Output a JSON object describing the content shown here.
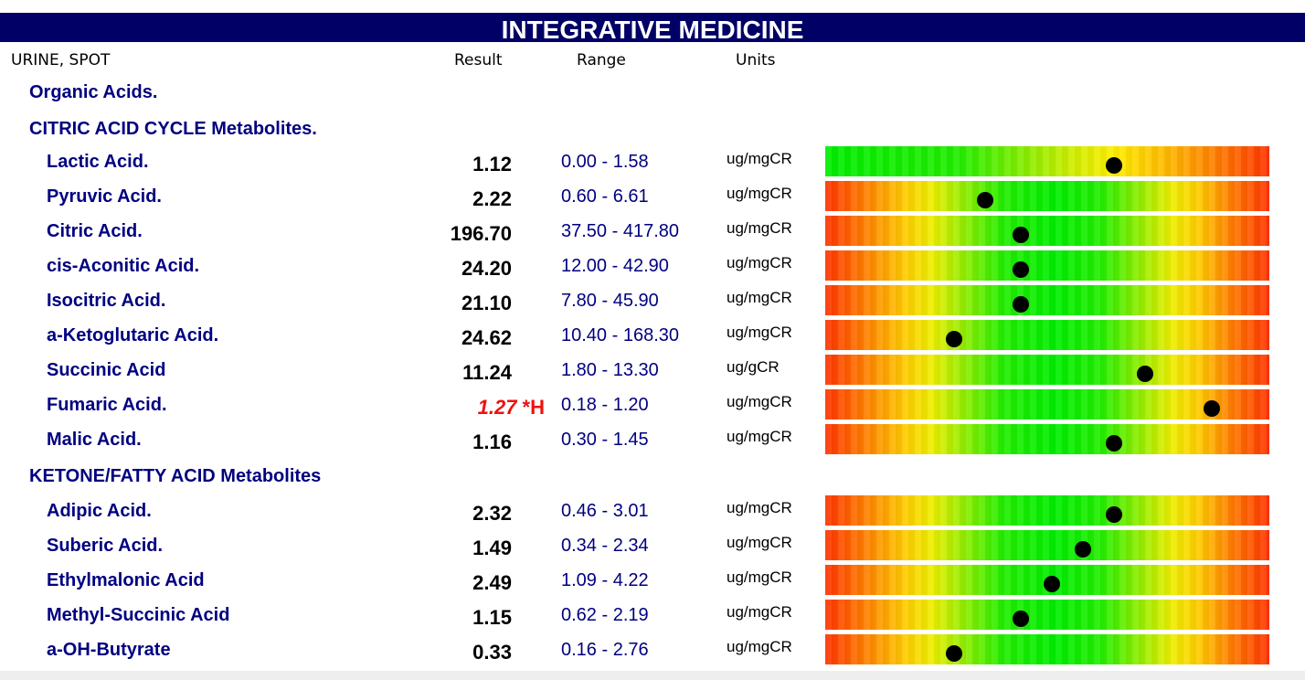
{
  "header": {
    "title": "INTEGRATIVE MEDICINE"
  },
  "columns": {
    "specimen": "URINE, SPOT",
    "result": "Result",
    "range": "Range",
    "units": "Units"
  },
  "sections": {
    "organic_acids": "Organic Acids.",
    "citric": "CITRIC ACID CYCLE Metabolites.",
    "ketone": "KETONE/FATTY ACID Metabolites"
  },
  "colors": {
    "header_bg": "#000066",
    "label_text": "#000080",
    "flag_red": "#ee1111",
    "gauge_low": "#00ee00",
    "gauge_high": "#ff3300"
  },
  "rows": [
    {
      "name": "Lactic Acid.",
      "result": "1.12",
      "flag": "",
      "range": "0.00 - 1.58",
      "units": "ug/mgCR",
      "gauge_style": "low-optimal",
      "marker_fraction": 0.65
    },
    {
      "name": "Pyruvic Acid.",
      "result": "2.22",
      "flag": "",
      "range": "0.60 - 6.61",
      "units": "ug/mgCR",
      "gauge_style": "mid-optimal",
      "marker_fraction": 0.36
    },
    {
      "name": "Citric Acid.",
      "result": "196.70",
      "flag": "",
      "range": "37.50 - 417.80",
      "units": "ug/mgCR",
      "gauge_style": "mid-optimal",
      "marker_fraction": 0.44
    },
    {
      "name": "cis-Aconitic Acid.",
      "result": "24.20",
      "flag": "",
      "range": "12.00 - 42.90",
      "units": "ug/mgCR",
      "gauge_style": "mid-optimal",
      "marker_fraction": 0.44
    },
    {
      "name": "Isocitric Acid.",
      "result": "21.10",
      "flag": "",
      "range": "7.80 - 45.90",
      "units": "ug/mgCR",
      "gauge_style": "mid-optimal",
      "marker_fraction": 0.44
    },
    {
      "name": "a-Ketoglutaric Acid.",
      "result": "24.62",
      "flag": "",
      "range": "10.40 - 168.30",
      "units": "ug/mgCR",
      "gauge_style": "mid-optimal",
      "marker_fraction": 0.29
    },
    {
      "name": "Succinic Acid",
      "result": "11.24",
      "flag": "",
      "range": "1.80 - 13.30",
      "units": "ug/gCR",
      "gauge_style": "mid-optimal",
      "marker_fraction": 0.72
    },
    {
      "name": "Fumaric Acid.",
      "result": "1.27",
      "flag": "*H",
      "range": "0.18 - 1.20",
      "units": "ug/mgCR",
      "gauge_style": "mid-optimal",
      "marker_fraction": 0.87
    },
    {
      "name": "Malic Acid.",
      "result": "1.16",
      "flag": "",
      "range": "0.30 - 1.45",
      "units": "ug/mgCR",
      "gauge_style": "mid-optimal",
      "marker_fraction": 0.65
    },
    {
      "name": "Adipic Acid.",
      "result": "2.32",
      "flag": "",
      "range": "0.46 - 3.01",
      "units": "ug/mgCR",
      "gauge_style": "mid-optimal",
      "marker_fraction": 0.65
    },
    {
      "name": "Suberic Acid.",
      "result": "1.49",
      "flag": "",
      "range": "0.34 - 2.34",
      "units": "ug/mgCR",
      "gauge_style": "mid-optimal",
      "marker_fraction": 0.58
    },
    {
      "name": "Ethylmalonic Acid",
      "result": "2.49",
      "flag": "",
      "range": "1.09 - 4.22",
      "units": "ug/mgCR",
      "gauge_style": "mid-optimal",
      "marker_fraction": 0.51
    },
    {
      "name": "Methyl-Succinic Acid",
      "result": "1.15",
      "flag": "",
      "range": "0.62 - 2.19",
      "units": "ug/mgCR",
      "gauge_style": "mid-optimal",
      "marker_fraction": 0.44
    },
    {
      "name": "a-OH-Butyrate",
      "result": "0.33",
      "flag": "",
      "range": "0.16 - 2.76",
      "units": "ug/mgCR",
      "gauge_style": "mid-optimal",
      "marker_fraction": 0.29
    }
  ]
}
